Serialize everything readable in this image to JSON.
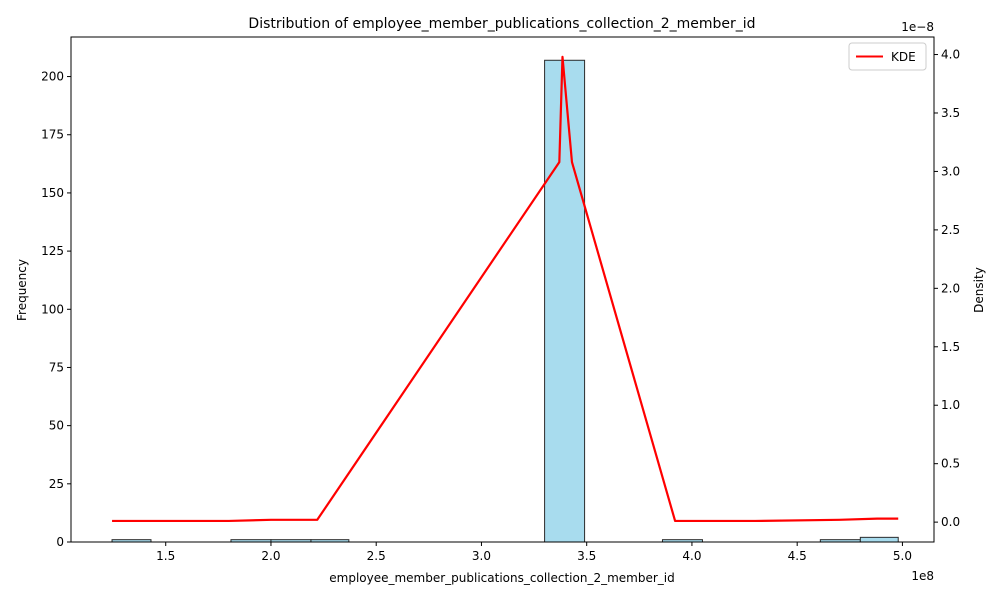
{
  "chart_data": {
    "type": "bar",
    "title": "Distribution of employee_member_publications_collection_2_member_id",
    "xlabel": "employee_member_publications_collection_2_member_id",
    "ylabel": "Frequency",
    "y2label": "Density",
    "x_offset_label": "1e8",
    "y2_offset_label": "1e−8",
    "xlim": [
      1.05,
      5.15
    ],
    "ylim": [
      0,
      217
    ],
    "y2lim": [
      -0.17,
      4.15
    ],
    "x_ticks": [
      1.5,
      2.0,
      2.5,
      3.0,
      3.5,
      4.0,
      4.5,
      5.0
    ],
    "y_ticks": [
      0,
      25,
      50,
      75,
      100,
      125,
      150,
      175,
      200
    ],
    "y2_ticks": [
      0.0,
      0.5,
      1.0,
      1.5,
      2.0,
      2.5,
      3.0,
      3.5,
      4.0
    ],
    "bins": [
      {
        "start": 1.245,
        "end": 1.43,
        "count": 1
      },
      {
        "start": 1.43,
        "end": 1.62,
        "count": 0
      },
      {
        "start": 1.62,
        "end": 1.81,
        "count": 0
      },
      {
        "start": 1.81,
        "end": 2.0,
        "count": 1
      },
      {
        "start": 2.0,
        "end": 2.19,
        "count": 1
      },
      {
        "start": 2.19,
        "end": 2.37,
        "count": 1
      },
      {
        "start": 2.37,
        "end": 2.56,
        "count": 0
      },
      {
        "start": 2.56,
        "end": 2.75,
        "count": 0
      },
      {
        "start": 2.75,
        "end": 2.93,
        "count": 0
      },
      {
        "start": 2.93,
        "end": 3.12,
        "count": 0
      },
      {
        "start": 3.12,
        "end": 3.3,
        "count": 0
      },
      {
        "start": 3.3,
        "end": 3.49,
        "count": 207
      },
      {
        "start": 3.49,
        "end": 3.68,
        "count": 0
      },
      {
        "start": 3.68,
        "end": 3.86,
        "count": 0
      },
      {
        "start": 3.86,
        "end": 4.05,
        "count": 1
      },
      {
        "start": 4.05,
        "end": 4.24,
        "count": 0
      },
      {
        "start": 4.24,
        "end": 4.42,
        "count": 0
      },
      {
        "start": 4.42,
        "end": 4.61,
        "count": 0
      },
      {
        "start": 4.61,
        "end": 4.8,
        "count": 1
      },
      {
        "start": 4.8,
        "end": 4.98,
        "count": 2
      }
    ],
    "series": [
      {
        "name": "KDE",
        "color": "#ff0000",
        "x": [
          1.245,
          1.4,
          1.6,
          1.8,
          2.0,
          2.1,
          2.22,
          3.37,
          3.385,
          3.43,
          3.92,
          4.05,
          4.3,
          4.7,
          4.88,
          4.98
        ],
        "y": [
          0.01,
          0.01,
          0.01,
          0.01,
          0.02,
          0.02,
          0.02,
          3.08,
          3.98,
          3.08,
          0.01,
          0.01,
          0.01,
          0.02,
          0.03,
          0.03
        ]
      }
    ],
    "bar_color": "#a8dcee",
    "legend_position": "top-right",
    "grid": false
  }
}
